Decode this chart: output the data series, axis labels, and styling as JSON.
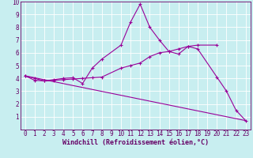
{
  "xlabel": "Windchill (Refroidissement éolien,°C)",
  "background_color": "#c8eef0",
  "grid_color": "#ffffff",
  "line_color": "#990099",
  "xlim": [
    -0.5,
    23.5
  ],
  "ylim": [
    0,
    10
  ],
  "xticks": [
    0,
    1,
    2,
    3,
    4,
    5,
    6,
    7,
    8,
    9,
    10,
    11,
    12,
    13,
    14,
    15,
    16,
    17,
    18,
    19,
    20,
    21,
    22,
    23
  ],
  "yticks": [
    1,
    2,
    3,
    4,
    5,
    6,
    7,
    8,
    9,
    10
  ],
  "series1_x": [
    0,
    1,
    2,
    3,
    4,
    5,
    6,
    7,
    8,
    10,
    11,
    12,
    13,
    14,
    15,
    16,
    17,
    18,
    20,
    21,
    22,
    23
  ],
  "series1_y": [
    4.2,
    4.0,
    3.8,
    3.9,
    4.0,
    4.05,
    3.6,
    4.8,
    5.5,
    6.6,
    8.4,
    9.8,
    8.0,
    7.0,
    6.1,
    5.9,
    6.5,
    6.3,
    4.1,
    3.0,
    1.5,
    0.7
  ],
  "series2_x": [
    0,
    1,
    2,
    3,
    4,
    5,
    6,
    7,
    8,
    10,
    11,
    12,
    13,
    14,
    15,
    16,
    17,
    18,
    20
  ],
  "series2_y": [
    4.2,
    3.85,
    3.8,
    3.85,
    3.9,
    3.95,
    4.0,
    4.05,
    4.1,
    4.8,
    5.0,
    5.2,
    5.7,
    6.0,
    6.1,
    6.3,
    6.5,
    6.6,
    6.6
  ],
  "series3_x": [
    0,
    23
  ],
  "series3_y": [
    4.2,
    0.7
  ],
  "xlabel_fontsize": 6,
  "tick_fontsize": 5.5,
  "linewidth": 0.8,
  "markersize": 3
}
